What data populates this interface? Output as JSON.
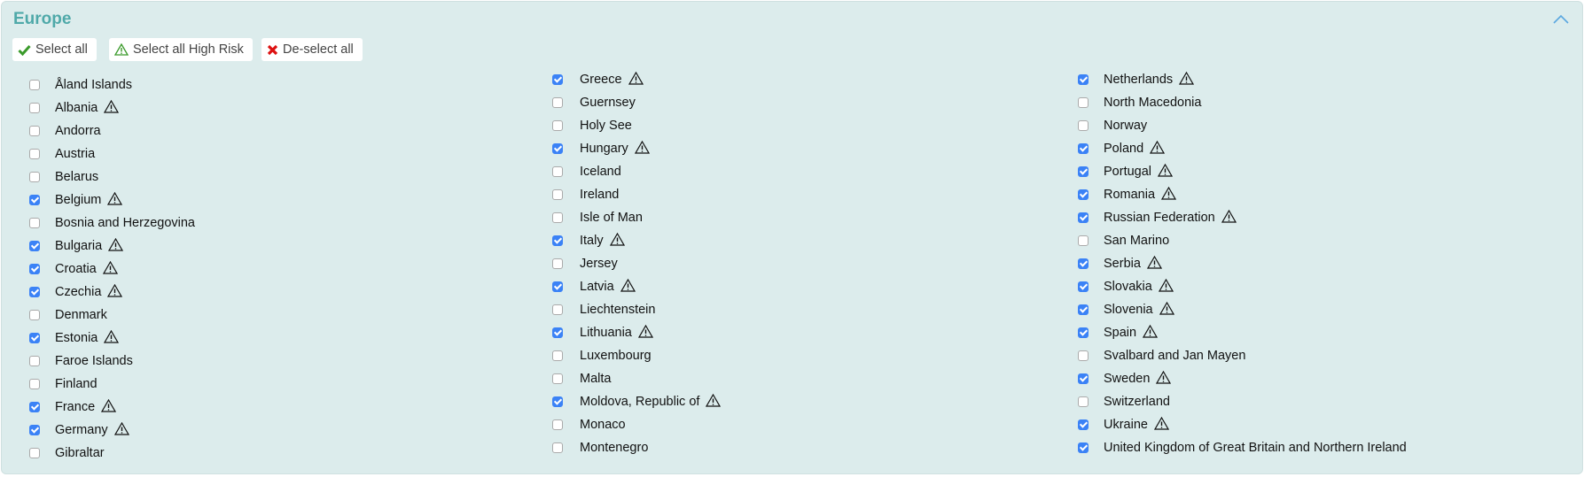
{
  "section": {
    "title": "Europe",
    "collapse_icon": "chevron-up-icon",
    "title_color": "#4fa9a9",
    "background": "#dcecec"
  },
  "toolbar": {
    "select_all": "Select all",
    "select_high_risk": "Select all High Risk",
    "deselect_all": "De-select all"
  },
  "columns": [
    [
      {
        "label": "Åland Islands",
        "checked": false,
        "high_risk": false
      },
      {
        "label": "Albania",
        "checked": false,
        "high_risk": true
      },
      {
        "label": "Andorra",
        "checked": false,
        "high_risk": false
      },
      {
        "label": "Austria",
        "checked": false,
        "high_risk": false
      },
      {
        "label": "Belarus",
        "checked": false,
        "high_risk": false
      },
      {
        "label": "Belgium",
        "checked": true,
        "high_risk": true
      },
      {
        "label": "Bosnia and Herzegovina",
        "checked": false,
        "high_risk": false
      },
      {
        "label": "Bulgaria",
        "checked": true,
        "high_risk": true
      },
      {
        "label": "Croatia",
        "checked": true,
        "high_risk": true
      },
      {
        "label": "Czechia",
        "checked": true,
        "high_risk": true
      },
      {
        "label": "Denmark",
        "checked": false,
        "high_risk": false
      },
      {
        "label": "Estonia",
        "checked": true,
        "high_risk": true
      },
      {
        "label": "Faroe Islands",
        "checked": false,
        "high_risk": false
      },
      {
        "label": "Finland",
        "checked": false,
        "high_risk": false
      },
      {
        "label": "France",
        "checked": true,
        "high_risk": true
      },
      {
        "label": "Germany",
        "checked": true,
        "high_risk": true
      },
      {
        "label": "Gibraltar",
        "checked": false,
        "high_risk": false
      }
    ],
    [
      {
        "label": "Greece",
        "checked": true,
        "high_risk": true
      },
      {
        "label": "Guernsey",
        "checked": false,
        "high_risk": false
      },
      {
        "label": "Holy See",
        "checked": false,
        "high_risk": false
      },
      {
        "label": "Hungary",
        "checked": true,
        "high_risk": true
      },
      {
        "label": "Iceland",
        "checked": false,
        "high_risk": false
      },
      {
        "label": "Ireland",
        "checked": false,
        "high_risk": false
      },
      {
        "label": "Isle of Man",
        "checked": false,
        "high_risk": false
      },
      {
        "label": "Italy",
        "checked": true,
        "high_risk": true
      },
      {
        "label": "Jersey",
        "checked": false,
        "high_risk": false
      },
      {
        "label": "Latvia",
        "checked": true,
        "high_risk": true
      },
      {
        "label": "Liechtenstein",
        "checked": false,
        "high_risk": false
      },
      {
        "label": "Lithuania",
        "checked": true,
        "high_risk": true
      },
      {
        "label": "Luxembourg",
        "checked": false,
        "high_risk": false
      },
      {
        "label": "Malta",
        "checked": false,
        "high_risk": false
      },
      {
        "label": "Moldova, Republic of",
        "checked": true,
        "high_risk": true
      },
      {
        "label": "Monaco",
        "checked": false,
        "high_risk": false
      },
      {
        "label": "Montenegro",
        "checked": false,
        "high_risk": false
      }
    ],
    [
      {
        "label": "Netherlands",
        "checked": true,
        "high_risk": true
      },
      {
        "label": "North Macedonia",
        "checked": false,
        "high_risk": false
      },
      {
        "label": "Norway",
        "checked": false,
        "high_risk": false
      },
      {
        "label": "Poland",
        "checked": true,
        "high_risk": true
      },
      {
        "label": "Portugal",
        "checked": true,
        "high_risk": true
      },
      {
        "label": "Romania",
        "checked": true,
        "high_risk": true
      },
      {
        "label": "Russian Federation",
        "checked": true,
        "high_risk": true
      },
      {
        "label": "San Marino",
        "checked": false,
        "high_risk": false
      },
      {
        "label": "Serbia",
        "checked": true,
        "high_risk": true
      },
      {
        "label": "Slovakia",
        "checked": true,
        "high_risk": true
      },
      {
        "label": "Slovenia",
        "checked": true,
        "high_risk": true
      },
      {
        "label": "Spain",
        "checked": true,
        "high_risk": true
      },
      {
        "label": "Svalbard and Jan Mayen",
        "checked": false,
        "high_risk": false
      },
      {
        "label": "Sweden",
        "checked": true,
        "high_risk": true
      },
      {
        "label": "Switzerland",
        "checked": false,
        "high_risk": false
      },
      {
        "label": "Ukraine",
        "checked": true,
        "high_risk": true
      },
      {
        "label": "United Kingdom of Great Britain and Northern Ireland",
        "checked": true,
        "high_risk": false
      }
    ]
  ]
}
